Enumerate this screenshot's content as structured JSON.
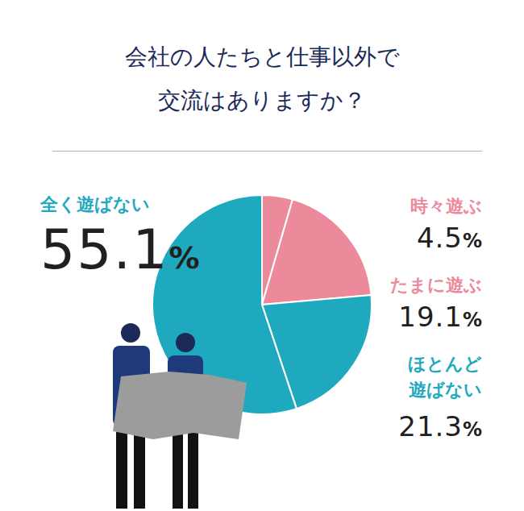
{
  "chart_data": {
    "type": "pie",
    "title": "会社の人たちと仕事以外で交流はありますか？",
    "categories": [
      "時々遊ぶ",
      "たまに遊ぶ",
      "ほとんど遊ばない",
      "全く遊ばない"
    ],
    "values": [
      4.5,
      19.1,
      21.3,
      55.1
    ],
    "value_labels": [
      "4.5%",
      "19.1%",
      "21.3%",
      "55.1%"
    ],
    "colors": [
      "#ec8a9c",
      "#ec8a9c",
      "#1fa9bf",
      "#1fa9bf"
    ],
    "data_labels": true
  }
}
